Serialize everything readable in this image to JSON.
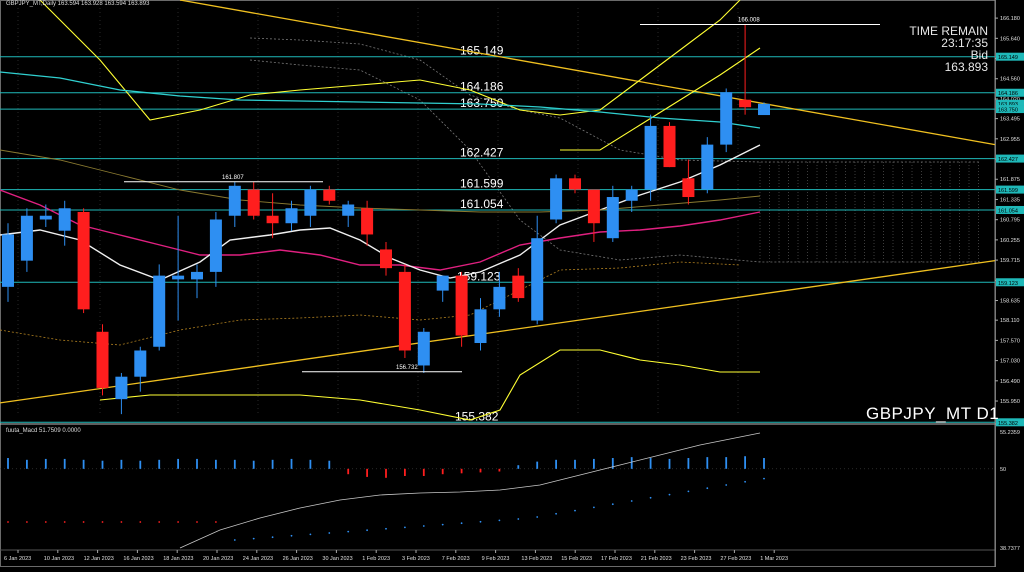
{
  "header": {
    "title": "GBPJPY_MT,Daily  163.594 163.928 163.594 163.893"
  },
  "time_remain": {
    "label": "TIME REMAIN",
    "value": "23:17:35",
    "bid_label": "Bid",
    "bid_value": "163.893"
  },
  "symbol_label": "GBPJPY_MT D1",
  "macd_header": "fuuta_Macd 51.7509  0.0000",
  "chart_data": [
    {
      "type": "candlestick",
      "title": "",
      "x_tick_labels": [
        "6 Jan 2023",
        "10 Jan 2023",
        "12 Jan 2023",
        "16 Jan 2023",
        "18 Jan 2023",
        "20 Jan 2023",
        "24 Jan 2023",
        "26 Jan 2023",
        "30 Jan 2023",
        "1 Feb 2023",
        "3 Feb 2023",
        "7 Feb 2023",
        "9 Feb 2023",
        "13 Feb 2023",
        "15 Feb 2023",
        "17 Feb 2023",
        "21 Feb 2023",
        "23 Feb 2023",
        "27 Feb 2023",
        "1 Mar 2023"
      ],
      "y_tick_labels": [
        "166.180",
        "165.640",
        "165.100",
        "164.560",
        "164.020",
        "163.495",
        "162.955",
        "162.415",
        "161.875",
        "161.335",
        "160.795",
        "160.255",
        "159.715",
        "159.175",
        "158.635",
        "158.110",
        "157.570",
        "157.030",
        "156.490",
        "155.950"
      ],
      "ylim": [
        155.55,
        166.45
      ],
      "level_lines": [
        {
          "value": 165.149,
          "label": "165.149"
        },
        {
          "value": 164.186,
          "label": "164.186"
        },
        {
          "value": 163.75,
          "label": "163.750"
        },
        {
          "value": 162.427,
          "label": "162.427"
        },
        {
          "value": 161.599,
          "label": "161.599"
        },
        {
          "value": 161.054,
          "label": "161.054"
        },
        {
          "value": 159.123,
          "label": "159.123"
        },
        {
          "value": 155.382,
          "label": "155.382"
        }
      ],
      "axis_price_tags": [
        {
          "value": 165.149,
          "label": "165.149",
          "color": "#1fb9b9"
        },
        {
          "value": 164.186,
          "label": "164.186",
          "color": "#1fb9b9"
        },
        {
          "value": 163.893,
          "label": "163.893",
          "color": "#1fb9b9"
        },
        {
          "value": 163.75,
          "label": "163.750",
          "color": "#1fb9b9"
        },
        {
          "value": 162.427,
          "label": "162.427",
          "color": "#1fb9b9"
        },
        {
          "value": 161.599,
          "label": "161.599",
          "color": "#1fb9b9"
        },
        {
          "value": 161.054,
          "label": "161.054",
          "color": "#1fb9b9"
        },
        {
          "value": 159.123,
          "label": "159.123",
          "color": "#1fb9b9"
        },
        {
          "value": 155.382,
          "label": "155.382",
          "color": "#1fb9b9"
        }
      ],
      "swing_marks": [
        {
          "value": 166.008,
          "label": "166.008"
        },
        {
          "value": 161.807,
          "label": "161.807"
        },
        {
          "value": 156.732,
          "label": "156.732"
        }
      ],
      "candles": [
        {
          "date": "5 Jan",
          "o": 159.0,
          "h": 160.7,
          "l": 158.6,
          "c": 160.4
        },
        {
          "date": "6 Jan",
          "o": 159.7,
          "h": 161.1,
          "l": 159.4,
          "c": 160.9
        },
        {
          "date": "9 Jan",
          "o": 160.8,
          "h": 161.2,
          "l": 160.6,
          "c": 160.9
        },
        {
          "date": "10 Jan",
          "o": 160.5,
          "h": 161.3,
          "l": 160.1,
          "c": 161.1
        },
        {
          "date": "11 Jan",
          "o": 161.0,
          "h": 161.1,
          "l": 158.3,
          "c": 158.4
        },
        {
          "date": "12 Jan",
          "o": 157.8,
          "h": 158.0,
          "l": 156.1,
          "c": 156.3
        },
        {
          "date": "13 Jan",
          "o": 156.0,
          "h": 156.7,
          "l": 155.6,
          "c": 156.6
        },
        {
          "date": "16 Jan",
          "o": 156.6,
          "h": 157.4,
          "l": 156.2,
          "c": 157.3
        },
        {
          "date": "17 Jan",
          "o": 157.4,
          "h": 159.6,
          "l": 157.3,
          "c": 159.3
        },
        {
          "date": "18 Jan",
          "o": 159.2,
          "h": 160.9,
          "l": 158.1,
          "c": 159.3
        },
        {
          "date": "19 Jan",
          "o": 159.2,
          "h": 159.6,
          "l": 158.7,
          "c": 159.4
        },
        {
          "date": "20 Jan",
          "o": 159.4,
          "h": 161.0,
          "l": 159.0,
          "c": 160.8
        },
        {
          "date": "23 Jan",
          "o": 160.9,
          "h": 161.8,
          "l": 160.6,
          "c": 161.7
        },
        {
          "date": "24 Jan",
          "o": 161.6,
          "h": 161.8,
          "l": 160.8,
          "c": 160.9
        },
        {
          "date": "25 Jan",
          "o": 160.9,
          "h": 161.5,
          "l": 160.3,
          "c": 160.7
        },
        {
          "date": "26 Jan",
          "o": 160.7,
          "h": 161.3,
          "l": 160.5,
          "c": 161.1
        },
        {
          "date": "27 Jan",
          "o": 160.9,
          "h": 161.7,
          "l": 160.6,
          "c": 161.6
        },
        {
          "date": "30 Jan",
          "o": 161.6,
          "h": 161.7,
          "l": 161.2,
          "c": 161.3
        },
        {
          "date": "31 Jan",
          "o": 160.9,
          "h": 161.3,
          "l": 160.6,
          "c": 161.2
        },
        {
          "date": "1 Feb",
          "o": 161.1,
          "h": 161.3,
          "l": 160.1,
          "c": 160.4
        },
        {
          "date": "2 Feb",
          "o": 160.0,
          "h": 160.2,
          "l": 159.3,
          "c": 159.5
        },
        {
          "date": "3 Feb",
          "o": 159.4,
          "h": 159.6,
          "l": 157.1,
          "c": 157.3
        },
        {
          "date": "6 Feb",
          "o": 156.9,
          "h": 157.9,
          "l": 156.7,
          "c": 157.8
        },
        {
          "date": "7 Feb",
          "o": 158.9,
          "h": 159.3,
          "l": 158.6,
          "c": 159.3
        },
        {
          "date": "8 Feb",
          "o": 159.3,
          "h": 159.4,
          "l": 157.4,
          "c": 157.7
        },
        {
          "date": "9 Feb",
          "o": 157.5,
          "h": 158.7,
          "l": 157.3,
          "c": 158.4
        },
        {
          "date": "10 Feb",
          "o": 158.4,
          "h": 159.4,
          "l": 158.2,
          "c": 159.0
        },
        {
          "date": "13 Feb",
          "o": 159.3,
          "h": 159.5,
          "l": 158.6,
          "c": 158.7
        },
        {
          "date": "14 Feb",
          "o": 158.1,
          "h": 160.9,
          "l": 158.0,
          "c": 160.3
        },
        {
          "date": "15 Feb",
          "o": 160.8,
          "h": 162.0,
          "l": 160.7,
          "c": 161.9
        },
        {
          "date": "16 Feb",
          "o": 161.9,
          "h": 162.0,
          "l": 161.5,
          "c": 161.6
        },
        {
          "date": "17 Feb",
          "o": 161.6,
          "h": 161.6,
          "l": 160.2,
          "c": 160.7
        },
        {
          "date": "20 Feb",
          "o": 160.3,
          "h": 161.7,
          "l": 160.2,
          "c": 161.4
        },
        {
          "date": "21 Feb",
          "o": 161.3,
          "h": 161.7,
          "l": 161.0,
          "c": 161.6
        },
        {
          "date": "22 Feb",
          "o": 161.6,
          "h": 163.6,
          "l": 161.3,
          "c": 163.3
        },
        {
          "date": "23 Feb",
          "o": 163.3,
          "h": 163.4,
          "l": 162.2,
          "c": 162.2
        },
        {
          "date": "24 Feb",
          "o": 161.9,
          "h": 162.4,
          "l": 161.2,
          "c": 161.4
        },
        {
          "date": "27 Feb",
          "o": 161.6,
          "h": 163.0,
          "l": 161.5,
          "c": 162.8
        },
        {
          "date": "28 Feb",
          "o": 162.8,
          "h": 164.3,
          "l": 162.6,
          "c": 164.2
        },
        {
          "date": "1 Mar",
          "o": 164.0,
          "h": 166.0,
          "l": 163.6,
          "c": 163.8
        },
        {
          "date": "2 Mar",
          "o": 163.59,
          "h": 163.93,
          "l": 163.59,
          "c": 163.89
        }
      ],
      "colors": {
        "up": "#2e8ff2",
        "down": "#ff1e1e",
        "level": "#1fb9b9",
        "trendline": "#f0c020",
        "band": "#ffff33"
      }
    },
    {
      "type": "bar",
      "title": "fuuta_Macd",
      "ylim": [
        38.7377,
        55.2359
      ],
      "y_tick_labels": [
        "55.2359",
        "50",
        "38.7377"
      ],
      "values": [
        1.2,
        1.0,
        1.1,
        1.1,
        1.0,
        0.9,
        1.0,
        0.9,
        1.0,
        1.1,
        1.1,
        1.0,
        1.0,
        0.9,
        1.0,
        1.1,
        1.0,
        0.9,
        -0.6,
        -0.9,
        -1.0,
        -0.8,
        -0.8,
        -0.6,
        -0.5,
        -0.4,
        -0.3,
        0.4,
        0.8,
        1.0,
        1.0,
        1.1,
        1.2,
        1.3,
        1.2,
        1.1,
        1.2,
        1.3,
        1.3,
        1.4,
        1.2
      ],
      "colors": {
        "up": "#2e8ff2",
        "down": "#ff1e1e",
        "signal": "#c8c8c8"
      }
    }
  ]
}
